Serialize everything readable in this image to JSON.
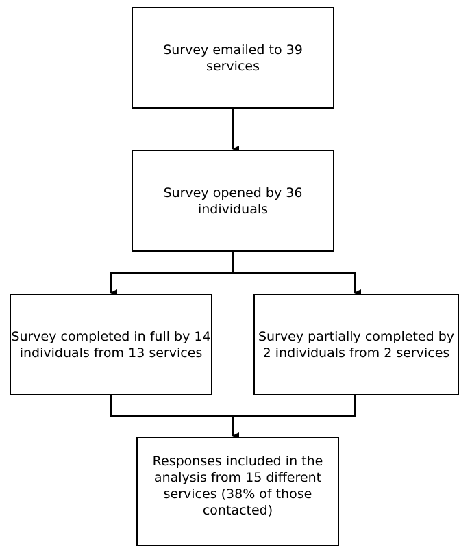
{
  "flowchart": {
    "nodes": {
      "survey_emailed": "Survey emailed to 39 services",
      "survey_opened": "Survey opened by 36\nindividuals",
      "completed_full": "Survey completed in full by 14\nindividuals from 13 services",
      "partially_completed": "Survey partially completed by\n2 individuals from 2 services",
      "responses_included": "Responses included in the\nanalysis from 15 different\nservices (38% of those\ncontacted)"
    },
    "colors": {
      "stroke": "#000000",
      "box_fill": "#ffffff",
      "text": "#000000"
    }
  }
}
